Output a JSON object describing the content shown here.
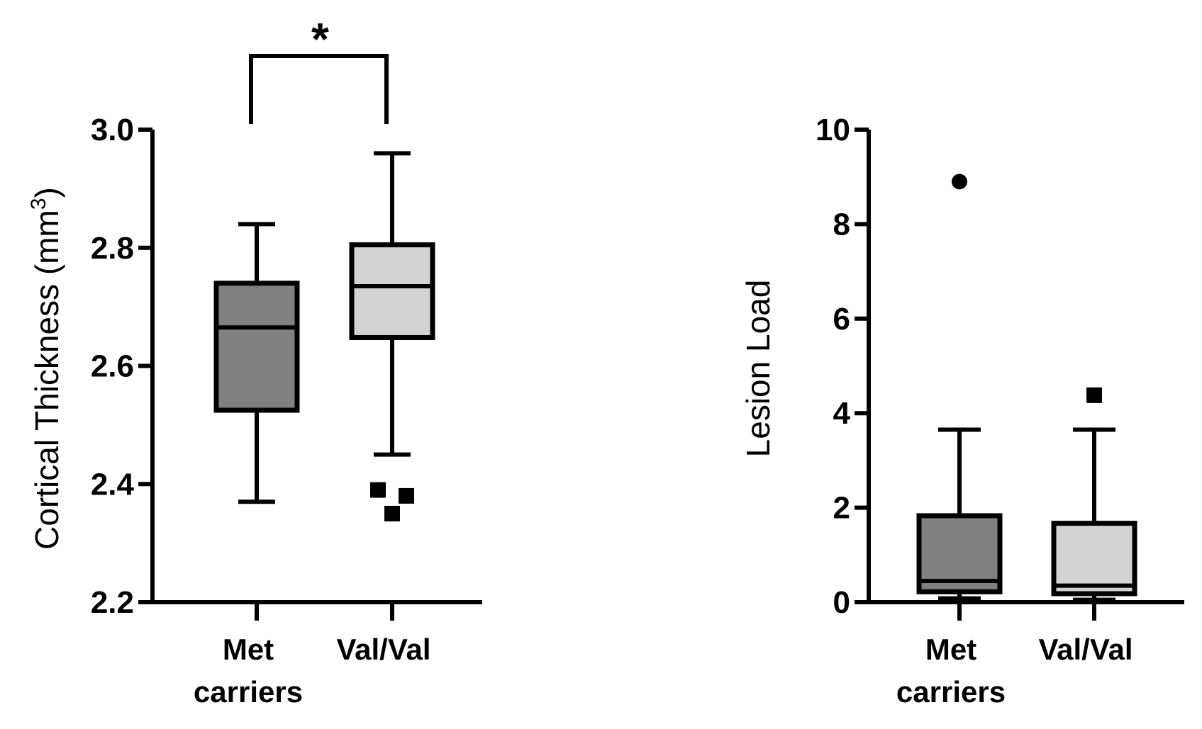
{
  "chart_data": [
    {
      "type": "boxplot",
      "panel": "left",
      "ylabel": "Cortical Thickness (mm",
      "ylabel_superscript": "3",
      "ylabel_close": ")",
      "ylim": [
        2.2,
        3.0
      ],
      "yticks": [
        2.2,
        2.4,
        2.6,
        2.8,
        3.0
      ],
      "ytick_labels": [
        "2.2",
        "2.4",
        "2.6",
        "2.8",
        "3.0"
      ],
      "categories": [
        {
          "line1": "Met",
          "line2": "carriers"
        },
        {
          "line1": "Val/Val",
          "line2": ""
        }
      ],
      "series": [
        {
          "name": "Met carriers",
          "min": 2.37,
          "q1": 2.525,
          "median": 2.665,
          "q3": 2.74,
          "max": 2.84,
          "outliers": [],
          "outlier_marker": "circle",
          "color": "#808080"
        },
        {
          "name": "Val/Val",
          "min": 2.45,
          "q1": 2.648,
          "median": 2.735,
          "q3": 2.805,
          "max": 2.96,
          "outliers": [
            2.39,
            2.38,
            2.35
          ],
          "outlier_marker": "square",
          "color": "#d3d3d3"
        }
      ],
      "significance": {
        "between": [
          0,
          1
        ],
        "label": "*"
      }
    },
    {
      "type": "boxplot",
      "panel": "right",
      "ylabel": "Lesion Load",
      "ylim": [
        0,
        10
      ],
      "yticks": [
        0,
        2,
        4,
        6,
        8,
        10
      ],
      "ytick_labels": [
        "0",
        "2",
        "4",
        "6",
        "8",
        "10"
      ],
      "categories": [
        {
          "line1": "Met",
          "line2": "carriers"
        },
        {
          "line1": "Val/Val",
          "line2": ""
        }
      ],
      "series": [
        {
          "name": "Met carriers",
          "min": 0.08,
          "q1": 0.22,
          "median": 0.45,
          "q3": 1.83,
          "max": 3.65,
          "outliers": [
            8.9
          ],
          "outlier_marker": "circle",
          "color": "#808080"
        },
        {
          "name": "Val/Val",
          "min": 0.05,
          "q1": 0.18,
          "median": 0.35,
          "q3": 1.67,
          "max": 3.65,
          "outliers": [
            4.38
          ],
          "outlier_marker": "square",
          "color": "#d3d3d3"
        }
      ]
    }
  ]
}
